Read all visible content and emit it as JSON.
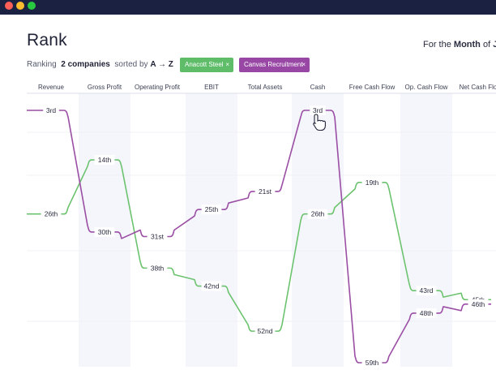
{
  "window": {
    "controls": [
      "close",
      "minimize",
      "zoom"
    ]
  },
  "header": {
    "title": "Rank",
    "range_prefix": "For the",
    "range_period": "Month",
    "range_of": "of",
    "range_month_initial": "J"
  },
  "ranking_bar": {
    "prefix": "Ranking",
    "count": "2 companies",
    "sorted_label": "sorted by",
    "sort_value": "A → Z"
  },
  "chips": [
    {
      "label": "Anacott Steel",
      "close": "×",
      "color": "#5fbd6a"
    },
    {
      "label": "Canvas Recruitment",
      "close": "×",
      "color": "#9848a4"
    }
  ],
  "chart_data": {
    "type": "line",
    "title": "Rank",
    "categories": [
      "Revenue",
      "Gross Profit",
      "Operating Profit",
      "EBIT",
      "Total Assets",
      "Cash",
      "Free Cash Flow",
      "Op. Cash Flow",
      "Net Cash Flo"
    ],
    "series": [
      {
        "name": "Anacott Steel",
        "color": "#6cc36f",
        "values": [
          26,
          14,
          38,
          42,
          52,
          26,
          19,
          43,
          45
        ]
      },
      {
        "name": "Canvas Recruitment",
        "color": "#9a4ea4",
        "values": [
          3,
          30,
          31,
          25,
          21,
          3,
          59,
          48,
          46
        ]
      }
    ],
    "rank_labels": {
      "Anacott Steel": [
        "26th",
        "14th",
        "38th",
        "42nd",
        "52nd",
        "26th",
        "19th",
        "43rd",
        "45th"
      ],
      "Canvas Recruitment": [
        "3rd",
        "30th",
        "31st",
        "25th",
        "21st",
        "3rd",
        "59th",
        "48th",
        "46th"
      ]
    },
    "ylim": [
      1,
      61
    ],
    "y_inverted": true,
    "grid": true,
    "legend": "top-left"
  }
}
